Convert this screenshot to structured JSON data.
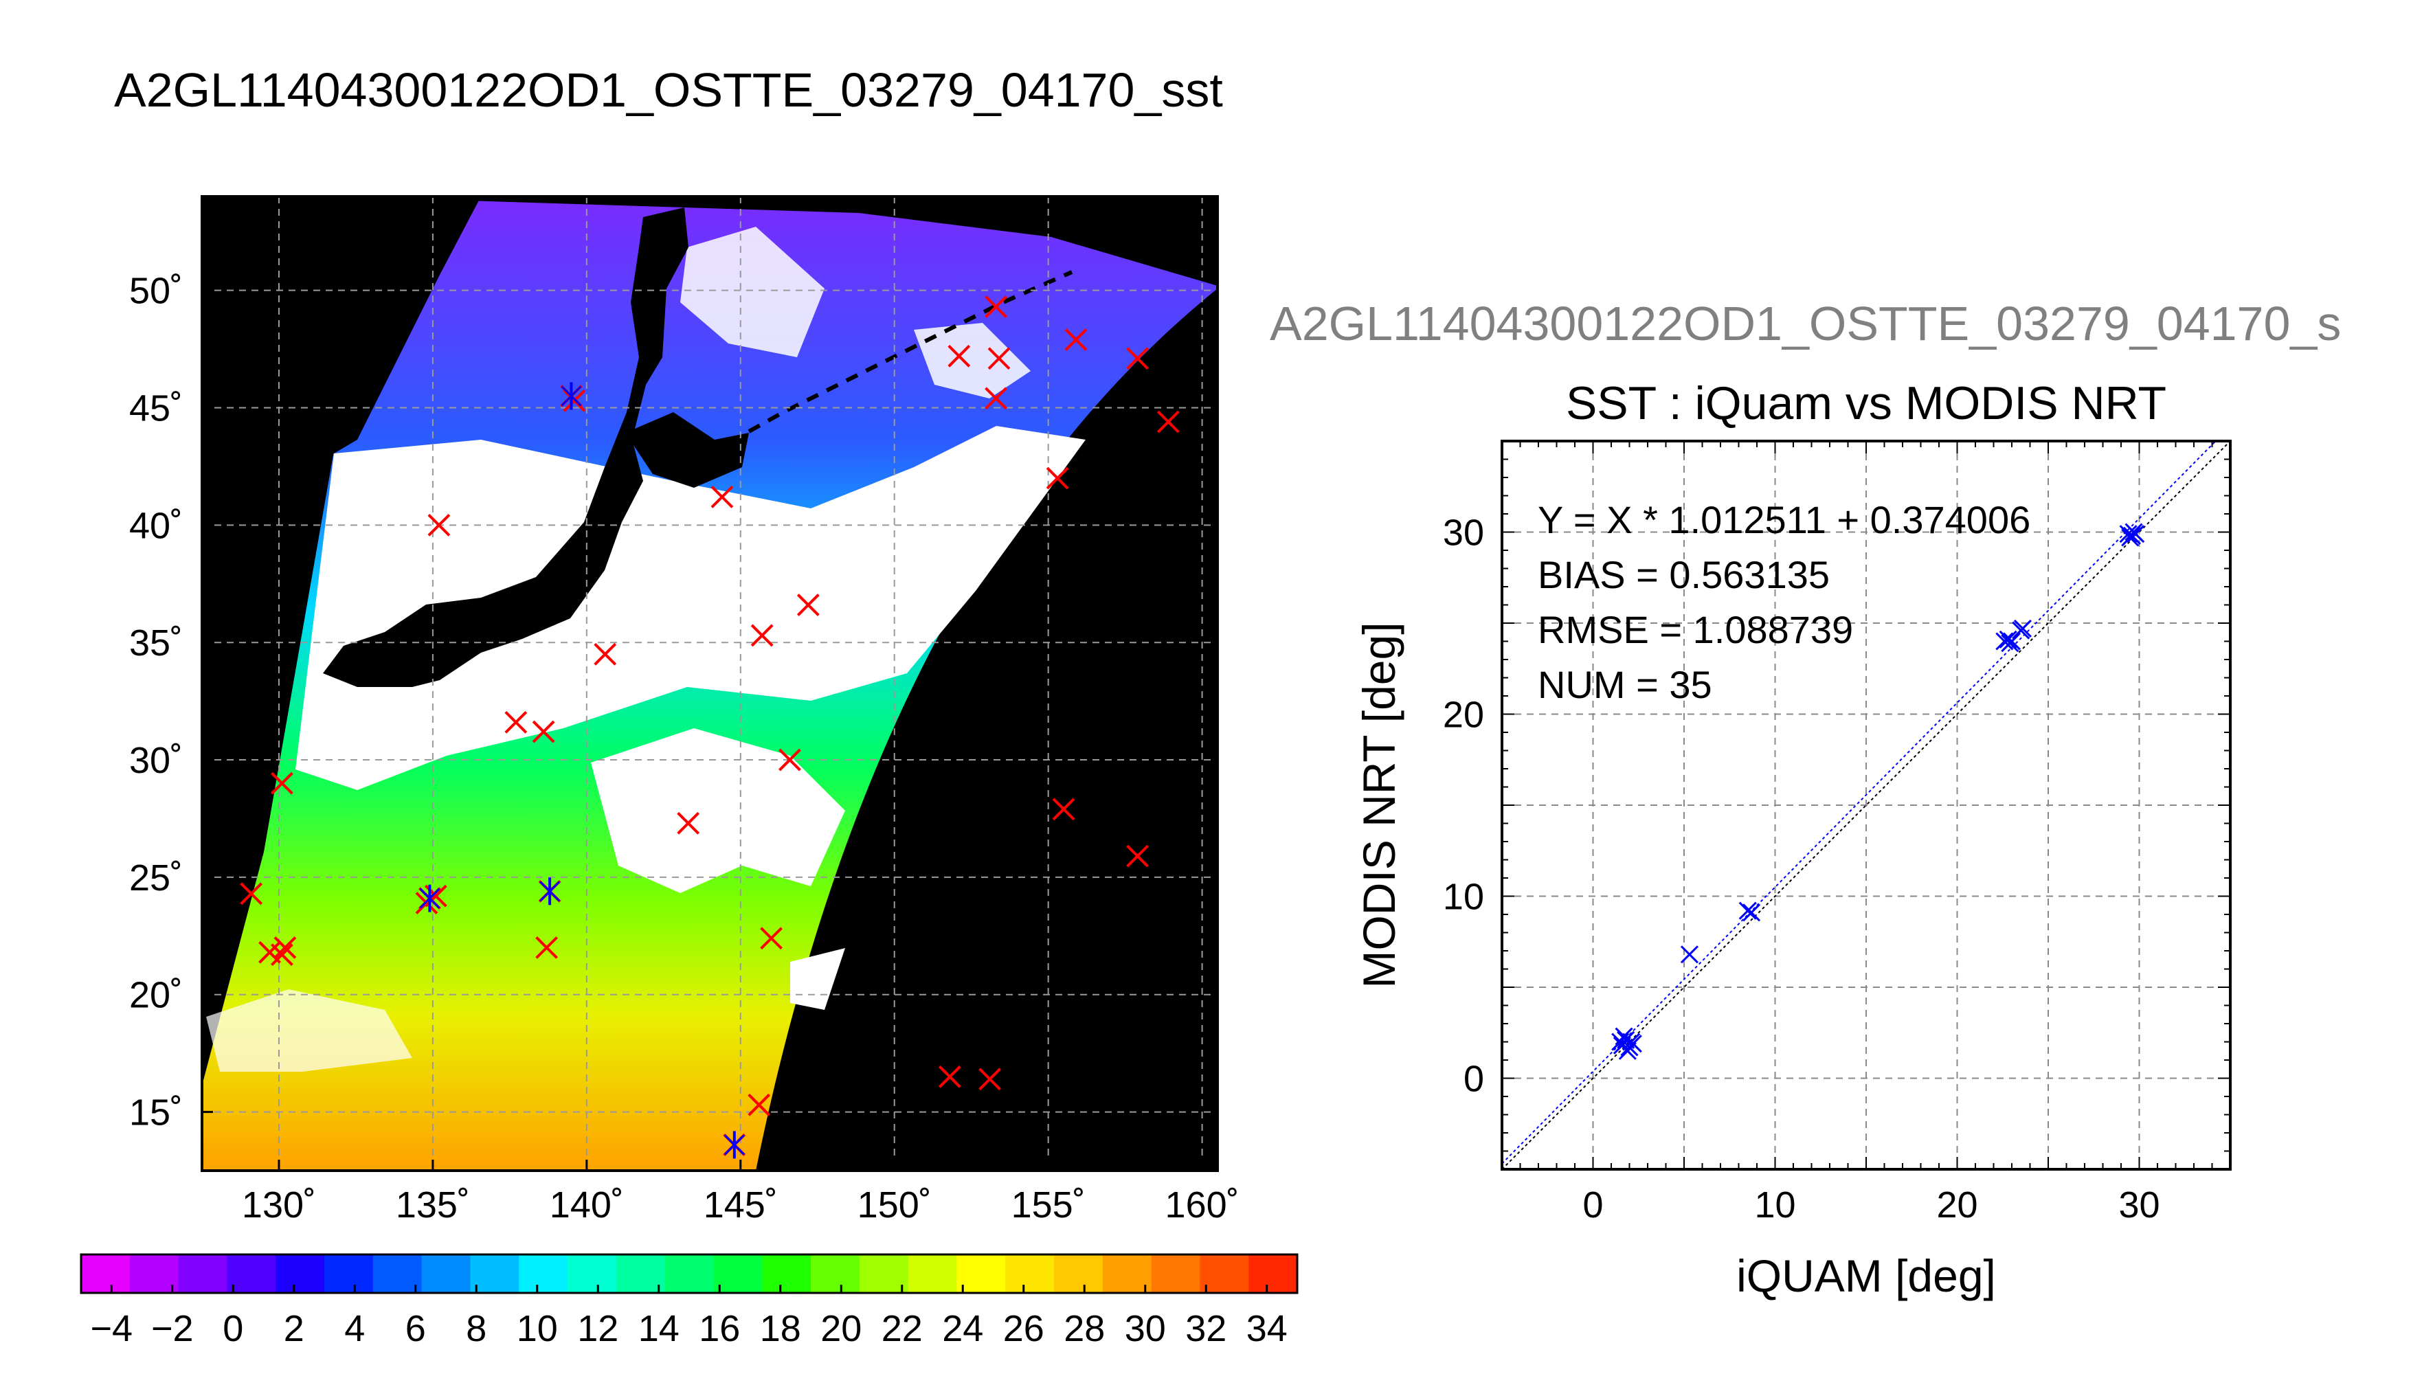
{
  "title": "A2GL11404300122OD1_OSTTE_03279_04170_sst",
  "chart_data": [
    {
      "type": "heatmap",
      "subtype": "satellite-sst-map",
      "title": "A2GL11404300122OD1_OSTTE_03279_04170_sst",
      "lon_range": [
        127.5,
        160.5
      ],
      "lat_range": [
        12.5,
        54
      ],
      "lon_ticks": [
        130,
        135,
        140,
        145,
        150,
        155,
        160
      ],
      "lat_ticks": [
        15,
        20,
        25,
        30,
        35,
        40,
        45,
        50
      ],
      "lon_tick_labels": [
        "130˚",
        "135˚",
        "140˚",
        "145˚",
        "150˚",
        "155˚",
        "160˚"
      ],
      "lat_tick_labels": [
        "15˚",
        "20˚",
        "25˚",
        "30˚",
        "35˚",
        "40˚",
        "45˚",
        "50˚"
      ],
      "grid": true,
      "colors": {
        "land": "#000000",
        "cloud": "#ffffff",
        "no_data": "#000000",
        "marker_unmatched": "#ff0000",
        "marker_matched": "#0000ff"
      },
      "buoy_points": [
        {
          "lon": 139.5,
          "lat": 45.5
        },
        {
          "lon": 139.6,
          "lat": 45.3
        },
        {
          "lon": 135.2,
          "lat": 40.0
        },
        {
          "lon": 144.4,
          "lat": 41.2
        },
        {
          "lon": 140.6,
          "lat": 34.5
        },
        {
          "lon": 145.7,
          "lat": 35.3
        },
        {
          "lon": 147.2,
          "lat": 36.6
        },
        {
          "lon": 137.7,
          "lat": 31.6
        },
        {
          "lon": 138.6,
          "lat": 31.2
        },
        {
          "lon": 130.1,
          "lat": 29.0
        },
        {
          "lon": 146.6,
          "lat": 30.0
        },
        {
          "lon": 143.3,
          "lat": 27.3
        },
        {
          "lon": 129.1,
          "lat": 24.3
        },
        {
          "lon": 134.9,
          "lat": 24.1
        },
        {
          "lon": 135.1,
          "lat": 24.2
        },
        {
          "lon": 134.8,
          "lat": 23.9
        },
        {
          "lon": 138.8,
          "lat": 24.4
        },
        {
          "lon": 138.7,
          "lat": 22.0
        },
        {
          "lon": 146.0,
          "lat": 22.4
        },
        {
          "lon": 129.7,
          "lat": 21.8
        },
        {
          "lon": 130.1,
          "lat": 21.7
        },
        {
          "lon": 130.2,
          "lat": 22.0
        },
        {
          "lon": 144.8,
          "lat": 13.6
        },
        {
          "lon": 145.6,
          "lat": 15.3
        },
        {
          "lon": 151.8,
          "lat": 16.5
        },
        {
          "lon": 153.1,
          "lat": 16.4
        },
        {
          "lon": 152.1,
          "lat": 47.2
        },
        {
          "lon": 153.3,
          "lat": 49.3
        },
        {
          "lon": 153.4,
          "lat": 47.1
        },
        {
          "lon": 153.3,
          "lat": 45.4
        },
        {
          "lon": 155.9,
          "lat": 47.9
        },
        {
          "lon": 157.9,
          "lat": 47.1
        },
        {
          "lon": 158.9,
          "lat": 44.4
        },
        {
          "lon": 155.3,
          "lat": 42.0
        },
        {
          "lon": 155.5,
          "lat": 27.9
        },
        {
          "lon": 157.9,
          "lat": 25.9
        }
      ],
      "matched_points": [
        {
          "lon": 139.5,
          "lat": 45.5
        },
        {
          "lon": 134.9,
          "lat": 24.1
        },
        {
          "lon": 138.8,
          "lat": 24.4
        },
        {
          "lon": 144.8,
          "lat": 13.6
        }
      ]
    },
    {
      "type": "colorbar",
      "range": [
        -5,
        35
      ],
      "tick_labels": [
        "−4",
        "−2",
        "0",
        "2",
        "4",
        "6",
        "8",
        "10",
        "12",
        "14",
        "16",
        "18",
        "20",
        "22",
        "24",
        "26",
        "28",
        "30",
        "32",
        "34"
      ],
      "tick_values": [
        -4,
        -2,
        0,
        2,
        4,
        6,
        8,
        10,
        12,
        14,
        16,
        18,
        20,
        22,
        24,
        26,
        28,
        30,
        32,
        34
      ],
      "step": 2,
      "colors": [
        "#e600ff",
        "#b400ff",
        "#8200ff",
        "#5000ff",
        "#1e00ff",
        "#0028ff",
        "#005aff",
        "#008cff",
        "#00beff",
        "#00f0ff",
        "#00ffd2",
        "#00ffa0",
        "#00ff6e",
        "#00ff3c",
        "#1eff00",
        "#64ff00",
        "#a0ff00",
        "#d2ff00",
        "#ffff00",
        "#ffe600",
        "#ffc800",
        "#ffa000",
        "#ff7800",
        "#ff5000",
        "#ff2800"
      ]
    },
    {
      "type": "scatter",
      "subtitle": "A2GL11404300122OD1_OSTTE_03279_04170_s",
      "title": "SST : iQuam vs MODIS NRT",
      "xlabel": "iQUAM [deg]",
      "ylabel": "MODIS NRT [deg]",
      "xlim": [
        -5,
        35
      ],
      "ylim": [
        -5,
        35
      ],
      "x_ticks": [
        0,
        10,
        20,
        30
      ],
      "y_ticks": [
        0,
        10,
        20,
        30
      ],
      "grid": true,
      "annotations": [
        "Y = X * 1.012511 + 0.374006",
        "BIAS = 0.563135",
        "RMSE = 1.088739",
        "NUM = 35"
      ],
      "fit": {
        "slope": 1.012511,
        "intercept": 0.374006
      },
      "marker_color": "#0000ff",
      "points": [
        {
          "x": 1.6,
          "y": 1.8
        },
        {
          "x": 1.8,
          "y": 2.1
        },
        {
          "x": 2.0,
          "y": 1.7
        },
        {
          "x": 1.7,
          "y": 2.3
        },
        {
          "x": 2.1,
          "y": 2.0
        },
        {
          "x": 1.9,
          "y": 1.5
        },
        {
          "x": 1.5,
          "y": 2.0
        },
        {
          "x": 2.2,
          "y": 1.9
        },
        {
          "x": 5.3,
          "y": 6.8
        },
        {
          "x": 8.5,
          "y": 9.2
        },
        {
          "x": 8.7,
          "y": 9.1
        },
        {
          "x": 22.6,
          "y": 24.0
        },
        {
          "x": 22.9,
          "y": 23.9
        },
        {
          "x": 22.8,
          "y": 24.1
        },
        {
          "x": 23.0,
          "y": 24.0
        },
        {
          "x": 23.6,
          "y": 24.7
        },
        {
          "x": 23.5,
          "y": 24.6
        },
        {
          "x": 29.4,
          "y": 29.9
        },
        {
          "x": 29.6,
          "y": 29.8
        },
        {
          "x": 29.8,
          "y": 29.9
        },
        {
          "x": 29.5,
          "y": 29.7
        },
        {
          "x": 29.7,
          "y": 30.0
        }
      ]
    }
  ]
}
